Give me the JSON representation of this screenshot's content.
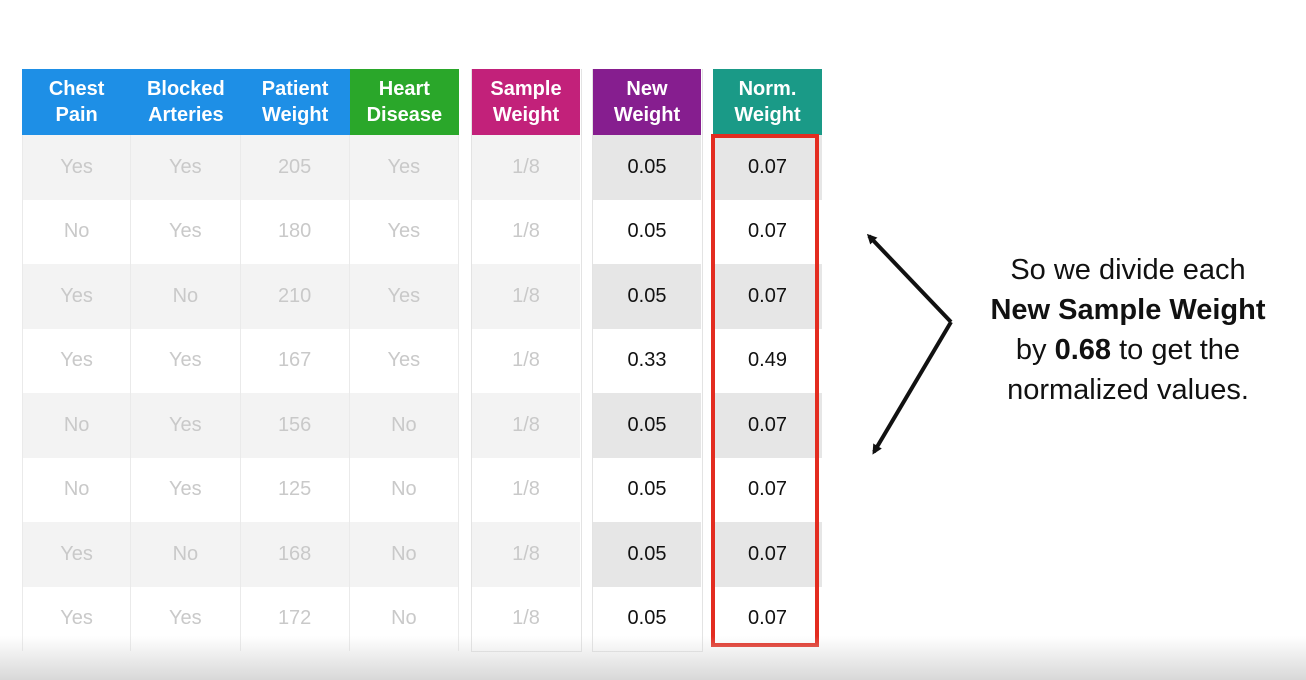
{
  "header_colors": {
    "chest_pain": "#1e8fe6",
    "blocked_arteries": "#1e8fe6",
    "patient_weight": "#1e8fe6",
    "heart_disease": "#2aa72a",
    "sample_weight": "#c2217a",
    "new_weight": "#861e8f",
    "norm_weight": "#1a9a87"
  },
  "highlight_color": "#e32c20",
  "features_table": {
    "headers": [
      {
        "line1": "Chest",
        "line2": "Pain"
      },
      {
        "line1": "Blocked",
        "line2": "Arteries"
      },
      {
        "line1": "Patient",
        "line2": "Weight"
      },
      {
        "line1": "Heart",
        "line2": "Disease"
      }
    ],
    "rows": [
      [
        "Yes",
        "Yes",
        "205",
        "Yes"
      ],
      [
        "No",
        "Yes",
        "180",
        "Yes"
      ],
      [
        "Yes",
        "No",
        "210",
        "Yes"
      ],
      [
        "Yes",
        "Yes",
        "167",
        "Yes"
      ],
      [
        "No",
        "Yes",
        "156",
        "No"
      ],
      [
        "No",
        "Yes",
        "125",
        "No"
      ],
      [
        "Yes",
        "No",
        "168",
        "No"
      ],
      [
        "Yes",
        "Yes",
        "172",
        "No"
      ]
    ]
  },
  "sample_weight_table": {
    "header": {
      "line1": "Sample",
      "line2": "Weight"
    },
    "values": [
      "1/8",
      "1/8",
      "1/8",
      "1/8",
      "1/8",
      "1/8",
      "1/8",
      "1/8"
    ]
  },
  "new_weight_table": {
    "header": {
      "line1": "New",
      "line2": "Weight"
    },
    "values": [
      "0.05",
      "0.05",
      "0.05",
      "0.33",
      "0.05",
      "0.05",
      "0.05",
      "0.05"
    ]
  },
  "norm_weight_table": {
    "header": {
      "line1": "Norm.",
      "line2": "Weight"
    },
    "values": [
      "0.07",
      "0.07",
      "0.07",
      "0.49",
      "0.07",
      "0.07",
      "0.07",
      "0.07"
    ]
  },
  "caption": {
    "line1": "So we divide each",
    "line2_bold": "New Sample Weight",
    "line3_prefix": "by ",
    "line3_bold": "0.68",
    "line3_suffix": " to get the",
    "line4": "normalized values."
  }
}
